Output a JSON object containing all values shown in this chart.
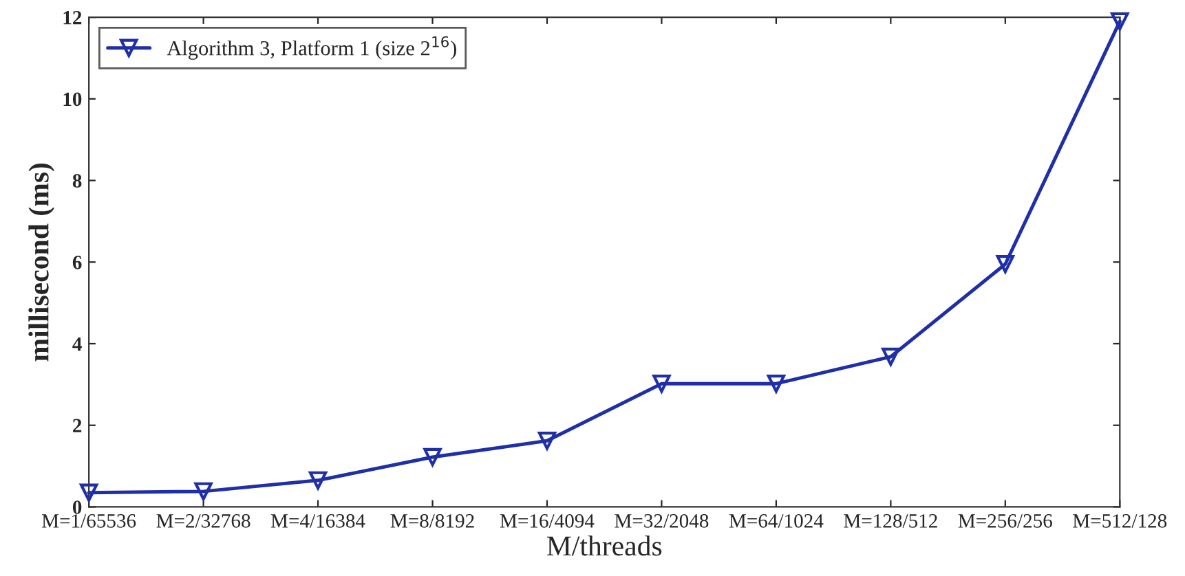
{
  "chart_data": {
    "type": "line",
    "xlabel": "M/threads",
    "ylabel": "millisecond (ms)",
    "categories": [
      "M=1/65536",
      "M=2/32768",
      "M=4/16384",
      "M=8/8192",
      "M=16/4094",
      "M=32/2048",
      "M=64/1024",
      "M=128/512",
      "M=256/256",
      "M=512/128"
    ],
    "series": [
      {
        "name": "Algorithm 3, Platform 1 (size 2$^{16}$)",
        "color": "#1f2fa8",
        "values": [
          0.35,
          0.38,
          0.65,
          1.22,
          1.62,
          3.02,
          3.02,
          3.68,
          5.95,
          11.9
        ]
      }
    ],
    "ylim": [
      0,
      12
    ],
    "yticks": [
      0,
      2,
      4,
      6,
      8,
      10,
      12
    ],
    "legend": "top left",
    "marker": "triangle",
    "line_style": "solid",
    "grid": false
  }
}
